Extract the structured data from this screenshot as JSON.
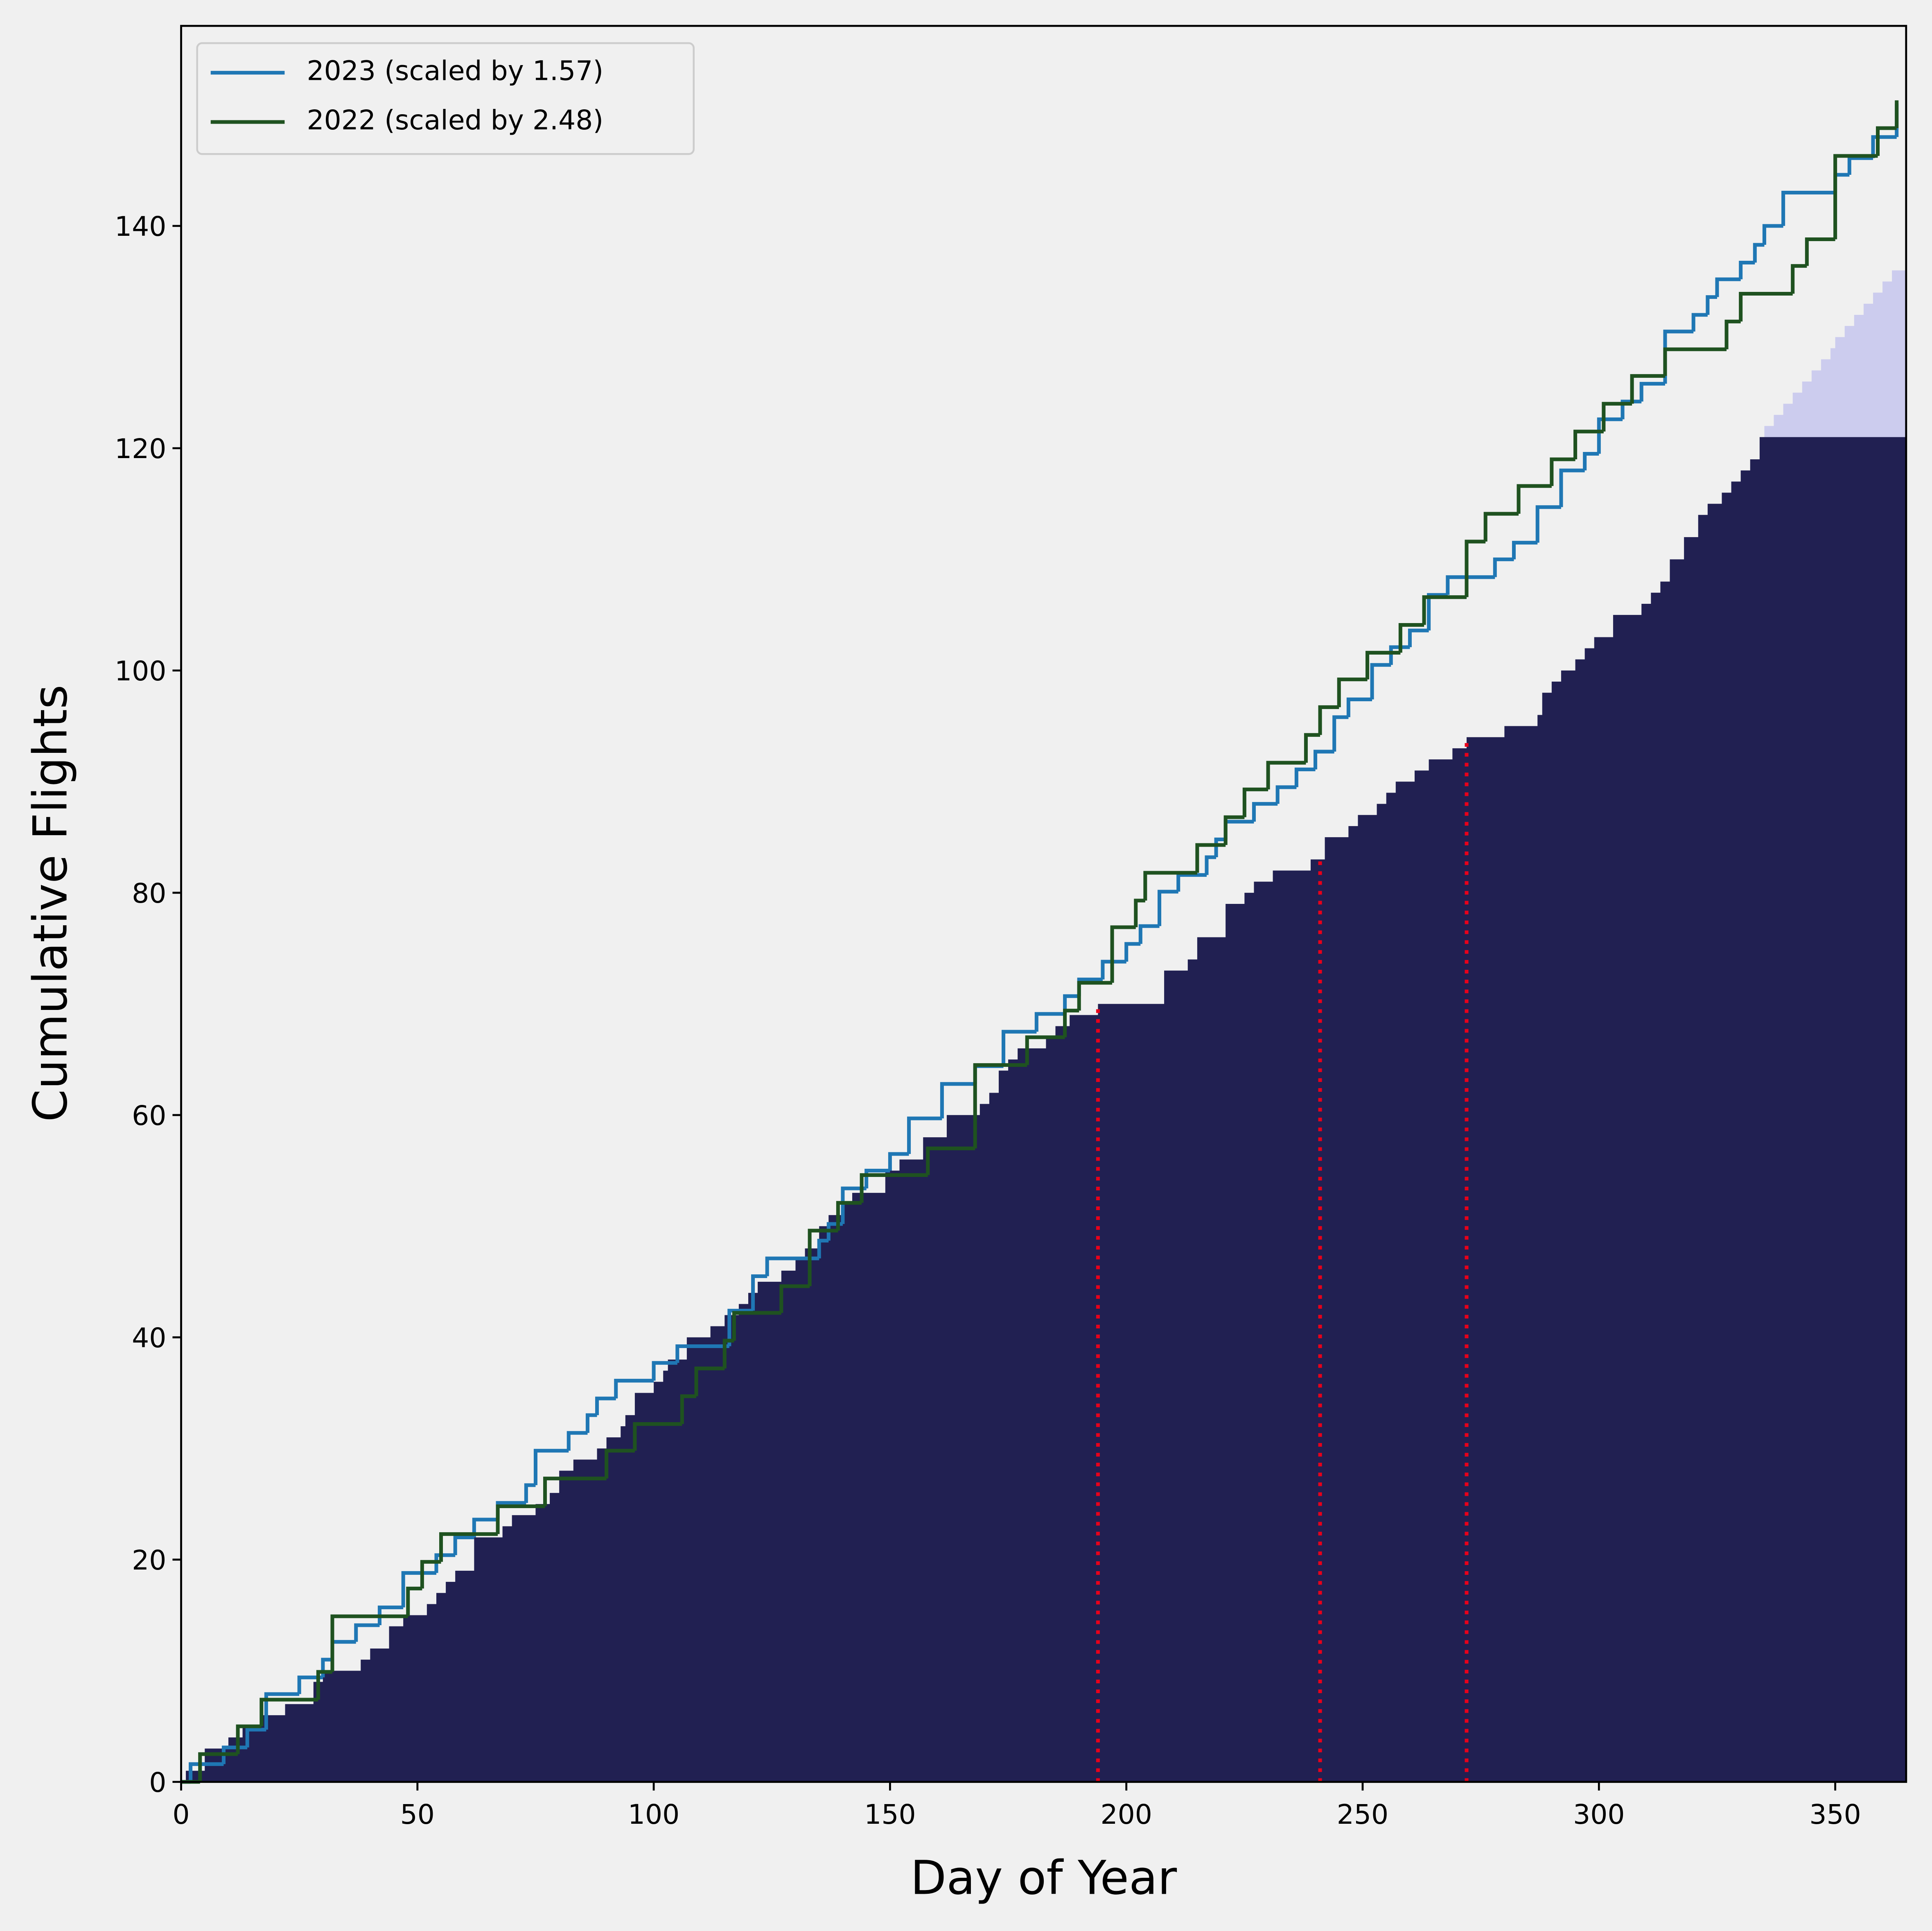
{
  "chart_data": {
    "type": "step",
    "xlabel": "Day of Year",
    "ylabel": "Cumulative Flights",
    "xlim": [
      0,
      365
    ],
    "ylim": [
      0,
      158
    ],
    "xticks": [
      0,
      50,
      100,
      150,
      200,
      250,
      300,
      350
    ],
    "yticks": [
      0,
      20,
      40,
      60,
      80,
      100,
      120,
      140
    ],
    "legend": "upper left",
    "bars": [
      {
        "color": "#ccccee",
        "x": [
          335,
          337,
          339,
          341,
          343,
          345,
          347,
          349,
          350,
          352,
          354,
          356,
          358,
          360,
          362
        ],
        "values": [
          122,
          123,
          124,
          125,
          126,
          127,
          128,
          129,
          130,
          131,
          132,
          133,
          134,
          135,
          136
        ]
      },
      {
        "color": "#212052",
        "x": [
          1,
          5,
          10,
          13,
          17,
          22,
          28,
          30,
          38,
          40,
          44,
          47,
          52,
          54,
          56,
          58,
          62,
          68,
          70,
          75,
          78,
          80,
          83,
          88,
          90,
          93,
          94,
          96,
          100,
          102,
          103,
          107,
          112,
          115,
          118,
          120,
          122,
          127,
          130,
          132,
          135,
          137,
          140,
          142,
          149,
          152,
          157,
          162,
          169,
          171,
          173,
          175,
          177,
          183,
          185,
          188,
          194,
          208,
          213,
          215,
          221,
          225,
          227,
          231,
          239,
          242,
          247,
          249,
          253,
          255,
          257,
          261,
          264,
          269,
          272,
          280,
          287,
          288,
          290,
          292,
          295,
          297,
          299,
          303,
          309,
          311,
          313,
          315,
          318,
          321,
          323,
          326,
          328,
          330,
          332,
          334
        ],
        "values": [
          1,
          3,
          4,
          5,
          6,
          7,
          9,
          10,
          11,
          12,
          14,
          15,
          16,
          17,
          18,
          19,
          22,
          23,
          24,
          25,
          26,
          28,
          29,
          30,
          31,
          32,
          33,
          35,
          36,
          37,
          38,
          40,
          41,
          42,
          43,
          44,
          45,
          46,
          47,
          48,
          50,
          51,
          52,
          53,
          55,
          56,
          58,
          60,
          61,
          62,
          64,
          65,
          66,
          67,
          68,
          69,
          70,
          73,
          74,
          76,
          79,
          80,
          81,
          82,
          83,
          85,
          86,
          87,
          88,
          89,
          90,
          91,
          92,
          93,
          94,
          95,
          96,
          98,
          99,
          100,
          101,
          102,
          103,
          105,
          106,
          107,
          108,
          110,
          112,
          114,
          115,
          116,
          117,
          118,
          119,
          121
        ]
      }
    ],
    "vlines": {
      "color": "#e8001a",
      "x": [
        194,
        241,
        272
      ]
    },
    "series": [
      {
        "name": "2023 (scaled by 1.57)",
        "color": "#1f77b4",
        "x": [
          0,
          2,
          9,
          14,
          18,
          25,
          30,
          32,
          37,
          42,
          47,
          54,
          58,
          62,
          67,
          73,
          75,
          82,
          86,
          88,
          92,
          100,
          105,
          116,
          121,
          124,
          135,
          137,
          140,
          145,
          150,
          154,
          161,
          168,
          174,
          181,
          187,
          190,
          195,
          200,
          203,
          207,
          211,
          217,
          219,
          221,
          227,
          232,
          236,
          240,
          244,
          247,
          252,
          256,
          260,
          264,
          268,
          278,
          282,
          287,
          292,
          297,
          300,
          305,
          309,
          314,
          320,
          323,
          325,
          330,
          333,
          335,
          339,
          350,
          353,
          358,
          363
        ],
        "values": [
          0,
          1.6,
          3.1,
          4.7,
          7.9,
          9.4,
          11,
          12.6,
          14.1,
          15.7,
          18.8,
          20.4,
          22,
          23.6,
          25.1,
          26.7,
          29.8,
          31.4,
          33,
          34.5,
          36.1,
          37.7,
          39.2,
          42.4,
          45.5,
          47.1,
          48.7,
          50.2,
          53.4,
          55,
          56.5,
          59.7,
          62.8,
          64.4,
          67.5,
          69.1,
          70.7,
          72.2,
          73.8,
          75.4,
          77,
          80.1,
          81.6,
          83.2,
          84.8,
          86.4,
          88,
          89.5,
          91.1,
          92.7,
          95.8,
          97.4,
          100.5,
          102.1,
          103.6,
          106.8,
          108.4,
          110,
          111.5,
          114.7,
          118,
          119.5,
          122.6,
          124.2,
          125.8,
          130.5,
          132,
          133.6,
          135.2,
          136.7,
          138.3,
          140,
          143,
          144.6,
          146.1,
          148,
          151
        ]
      },
      {
        "name": "2022 (scaled by 2.48)",
        "color": "#1f5220",
        "x": [
          0,
          4,
          12,
          17,
          29,
          32,
          48,
          51,
          55,
          67,
          77,
          90,
          96,
          106,
          109,
          115,
          117,
          127,
          133,
          139,
          144,
          158,
          168,
          179,
          187,
          190,
          197,
          202,
          204,
          215,
          221,
          225,
          230,
          238,
          241,
          245,
          251,
          258,
          263,
          272,
          276,
          283,
          290,
          295,
          301,
          307,
          314,
          327,
          330,
          341,
          344,
          350,
          359,
          363
        ],
        "values": [
          0,
          2.5,
          5,
          7.4,
          9.9,
          14.9,
          17.4,
          19.8,
          22.3,
          24.8,
          27.3,
          29.8,
          32.2,
          34.7,
          37.2,
          39.7,
          42.2,
          44.6,
          49.6,
          52.1,
          54.6,
          57,
          64.5,
          67,
          69.4,
          71.9,
          76.9,
          79.3,
          81.8,
          84.3,
          86.8,
          89.3,
          91.7,
          94.2,
          96.7,
          99.2,
          101.6,
          104.1,
          106.6,
          111.6,
          114.1,
          116.6,
          119,
          121.5,
          124,
          126.5,
          128.9,
          131.4,
          133.9,
          136.4,
          138.8,
          146.3,
          148.8,
          151.3
        ]
      }
    ]
  }
}
